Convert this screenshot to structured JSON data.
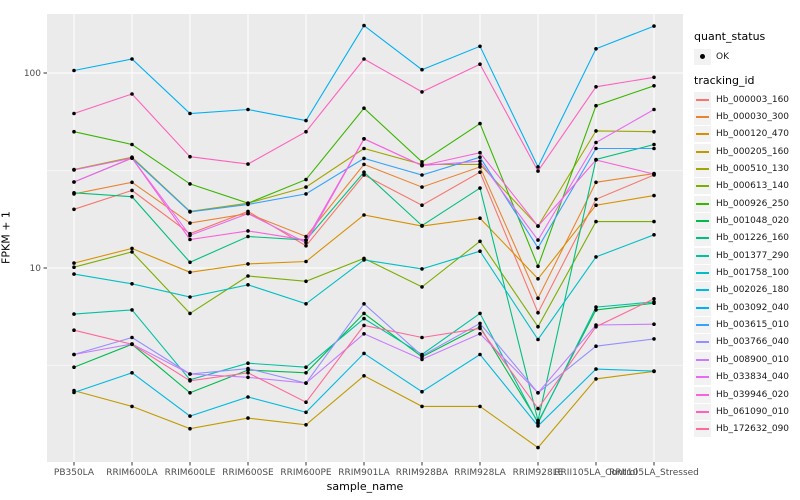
{
  "chart_data": {
    "type": "line",
    "title": "",
    "xlabel": "sample_name",
    "ylabel": "FPKM + 1",
    "y_scale": "log10",
    "ylim": [
      1.01,
      201
    ],
    "y_ticks": [
      10,
      100
    ],
    "y_tick_labels": [
      "10",
      "100"
    ],
    "y_minor": [
      3.162,
      31.62
    ],
    "grid": true,
    "panel_bg": "#EBEBEB",
    "grid_color": "#FFFFFF",
    "tick_color": "#333333",
    "tick_label_color": "#4D4D4D",
    "point_color": "#000000",
    "legend_position": "right",
    "categories": [
      "PB350LA",
      "RRIM600LA",
      "RRIM600LE",
      "RRIM600SE",
      "RRIM600PE",
      "RRIM901LA",
      "RRIM928BA",
      "RRIM928LA",
      "RRIM928LE",
      "RRII105LA_Control",
      "RRII105LA_Stressed"
    ],
    "legend": {
      "quant_status_title": "quant_status",
      "quant_status_items": [
        {
          "label": "OK",
          "marker": "point"
        }
      ],
      "tracking_title": "tracking_id"
    },
    "series": [
      {
        "id": "Hb_000003_160",
        "color": "#F8766D",
        "values": [
          20,
          25,
          15,
          19.5,
          13,
          30,
          21,
          31,
          5.9,
          22.5,
          30
        ]
      },
      {
        "id": "Hb_000030_300",
        "color": "#EA8331",
        "values": [
          24,
          27.5,
          17,
          19,
          14.5,
          34,
          26,
          33,
          7,
          27.5,
          30.5
        ]
      },
      {
        "id": "Hb_000120_470",
        "color": "#D89000",
        "values": [
          10.6,
          12.6,
          9.5,
          10.5,
          10.8,
          18.7,
          16.4,
          18,
          8.8,
          21,
          23.5
        ]
      },
      {
        "id": "Hb_000205_160",
        "color": "#C09B00",
        "values": [
          2.35,
          1.95,
          1.5,
          1.7,
          1.57,
          2.8,
          1.95,
          1.95,
          1.2,
          2.7,
          2.95
        ]
      },
      {
        "id": "Hb_000510_130",
        "color": "#A3A500",
        "values": [
          32,
          37,
          19.5,
          21.5,
          26,
          41,
          34,
          34,
          16.4,
          50.5,
          50
        ]
      },
      {
        "id": "Hb_000613_140",
        "color": "#7CAE00",
        "values": [
          10.1,
          12.1,
          5.85,
          9.1,
          8.55,
          11.2,
          8,
          13.7,
          5,
          17.3,
          17.3
        ]
      },
      {
        "id": "Hb_000926_250",
        "color": "#39B600",
        "values": [
          50,
          43,
          27,
          21.5,
          28.4,
          66,
          35,
          55,
          10.2,
          68,
          86
        ]
      },
      {
        "id": "Hb_001048_020",
        "color": "#00BB4E",
        "values": [
          3.1,
          4.06,
          2.29,
          3,
          2.9,
          5.85,
          3.5,
          5,
          1.62,
          6.1,
          6.6
        ]
      },
      {
        "id": "Hb_001226_160",
        "color": "#00BF7D",
        "values": [
          24.3,
          23.2,
          10.7,
          14.5,
          13.9,
          31,
          16.5,
          25.7,
          1.65,
          36,
          43
        ]
      },
      {
        "id": "Hb_001377_290",
        "color": "#00C1A3",
        "values": [
          5.8,
          6.1,
          2.67,
          3.25,
          3.1,
          5.5,
          3.6,
          5.85,
          1.6,
          6.3,
          6.7
        ]
      },
      {
        "id": "Hb_001758_100",
        "color": "#00BFC4",
        "values": [
          9.3,
          8.3,
          7.1,
          8.2,
          6.55,
          11,
          9.9,
          12.2,
          4.3,
          11.4,
          14.8
        ]
      },
      {
        "id": "Hb_002026_180",
        "color": "#00BAE0",
        "values": [
          2.3,
          2.9,
          1.74,
          2.18,
          1.82,
          3.65,
          2.32,
          3.6,
          1.55,
          3.03,
          2.96
        ]
      },
      {
        "id": "Hb_003092_040",
        "color": "#00B0F6",
        "values": [
          103,
          118,
          62,
          65,
          57,
          175,
          104,
          137,
          33,
          133,
          174
        ]
      },
      {
        "id": "Hb_003615_010",
        "color": "#35A2FF",
        "values": [
          27.6,
          36.6,
          19.4,
          21.2,
          24,
          36.5,
          30,
          37,
          12.7,
          41,
          41
        ]
      },
      {
        "id": "Hb_003766_040",
        "color": "#9590FF",
        "values": [
          3.6,
          4.4,
          2.86,
          3.05,
          2.57,
          6.55,
          3.55,
          5.2,
          2.29,
          3.97,
          4.33
        ]
      },
      {
        "id": "Hb_008900_010",
        "color": "#C77CFF",
        "values": [
          3.6,
          4.08,
          2.86,
          2.75,
          2.57,
          4.6,
          3.4,
          4.6,
          2.29,
          5.1,
          5.15
        ]
      },
      {
        "id": "Hb_033834_040",
        "color": "#E76BF3",
        "values": [
          31.8,
          36.6,
          14.7,
          19,
          13.5,
          46,
          33.5,
          35.3,
          13.9,
          44,
          65
        ]
      },
      {
        "id": "Hb_039946_020",
        "color": "#FA62DB",
        "values": [
          27.6,
          36.6,
          14,
          15.5,
          13.9,
          46,
          33.5,
          39,
          16.4,
          35.8,
          30.3
        ]
      },
      {
        "id": "Hb_061090_010",
        "color": "#FF62BC",
        "values": [
          62,
          78,
          37.2,
          34.1,
          50,
          118,
          80,
          111,
          31.4,
          85,
          95
        ]
      },
      {
        "id": "Hb_172632_090",
        "color": "#FF6A98",
        "values": [
          4.8,
          4.06,
          2.64,
          2.9,
          2.05,
          5.08,
          4.4,
          4.9,
          1.9,
          5,
          6.95
        ]
      }
    ]
  }
}
